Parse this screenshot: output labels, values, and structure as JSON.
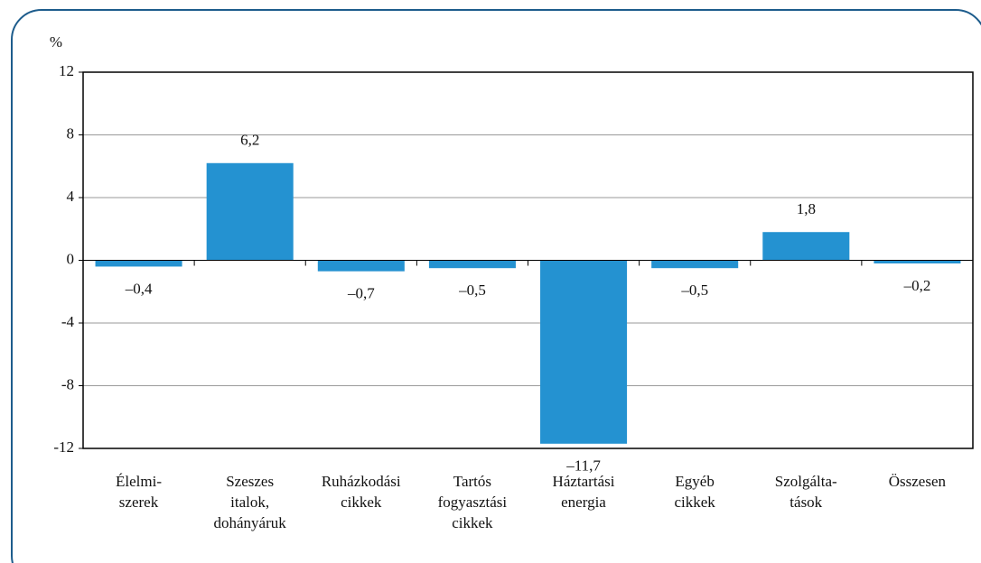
{
  "chart_data": {
    "type": "bar",
    "y_label": "%",
    "categories": [
      "Élelmi-\nszerek",
      "Szeszes\nitalok,\ndohányáruk",
      "Ruházkodási\ncikkek",
      "Tartós\nfogyasztási\ncikkek",
      "Háztartási\nenergia",
      "Egyéb\ncikkek",
      "Szolgálta-\ntások",
      "Összesen"
    ],
    "values": [
      -0.4,
      6.2,
      -0.7,
      -0.5,
      -11.7,
      -0.5,
      1.8,
      -0.2
    ],
    "value_labels": [
      "–0,4",
      "6,2",
      "–0,7",
      "–0,5",
      "–11,7",
      "–0,5",
      "1,8",
      "–0,2"
    ],
    "color": "#2492d1",
    "ylim": [
      -12,
      12
    ],
    "yticks": [
      -12,
      -8,
      -4,
      0,
      4,
      8,
      12
    ],
    "grid": true
  }
}
